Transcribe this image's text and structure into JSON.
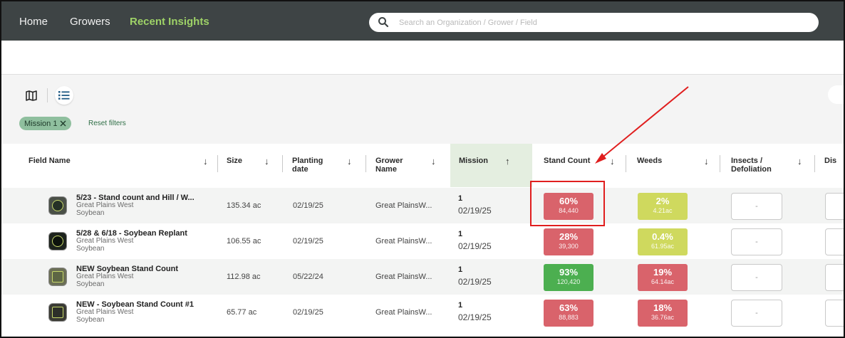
{
  "nav": {
    "items": [
      "Home",
      "Growers",
      "Recent Insights"
    ],
    "search_placeholder": "Search an Organization / Grower / Field"
  },
  "filters": {
    "chip_label": "Mission 1",
    "reset_label": "Reset filters"
  },
  "table": {
    "headers": {
      "field_name": "Field Name",
      "size": "Size",
      "planting_date": "Planting date",
      "grower_name": "Grower Name",
      "mission": "Mission",
      "stand_count": "Stand Count",
      "weeds": "Weeds",
      "insects": "Insects / Defoliation",
      "dis": "Dis"
    },
    "rows": [
      {
        "field": "5/23 - Stand count and Hill / W...",
        "org": "Great Plains West",
        "crop": "Soybean",
        "size": "135.34 ac",
        "planting_date": "02/19/25",
        "grower": "Great PlainsW...",
        "mission_num": "1",
        "mission_date": "02/19/25",
        "stand_pct": "60%",
        "stand_sub": "84,440",
        "stand_color": "#d9636b",
        "weeds_pct": "2%",
        "weeds_sub": "4.21ac",
        "weeds_color": "#cfd95e",
        "insects": "-"
      },
      {
        "field": "5/28 & 6/18 - Soybean Replant",
        "org": "Great Plains West",
        "crop": "Soybean",
        "size": "106.55 ac",
        "planting_date": "02/19/25",
        "grower": "Great PlainsW...",
        "mission_num": "1",
        "mission_date": "02/19/25",
        "stand_pct": "28%",
        "stand_sub": "39,300",
        "stand_color": "#d9636b",
        "weeds_pct": "0.4%",
        "weeds_sub": "61.95ac",
        "weeds_color": "#cfd95e",
        "insects": "-"
      },
      {
        "field": "NEW Soybean Stand Count",
        "org": "Great Plains West",
        "crop": "Soybean",
        "size": "112.98 ac",
        "planting_date": "05/22/24",
        "grower": "Great PlainsW...",
        "mission_num": "1",
        "mission_date": "02/19/25",
        "stand_pct": "93%",
        "stand_sub": "120,420",
        "stand_color": "#4caf50",
        "weeds_pct": "19%",
        "weeds_sub": "64.14ac",
        "weeds_color": "#d9636b",
        "insects": "-"
      },
      {
        "field": "NEW - Soybean Stand Count #1",
        "org": "Great Plains West",
        "crop": "Soybean",
        "size": "65.77 ac",
        "planting_date": "02/19/25",
        "grower": "Great PlainsW...",
        "mission_num": "1",
        "mission_date": "02/19/25",
        "stand_pct": "63%",
        "stand_sub": "88,883",
        "stand_color": "#d9636b",
        "weeds_pct": "18%",
        "weeds_sub": "36.76ac",
        "weeds_color": "#d9636b",
        "insects": "-"
      }
    ]
  },
  "annotation_color": "#e01e1e"
}
